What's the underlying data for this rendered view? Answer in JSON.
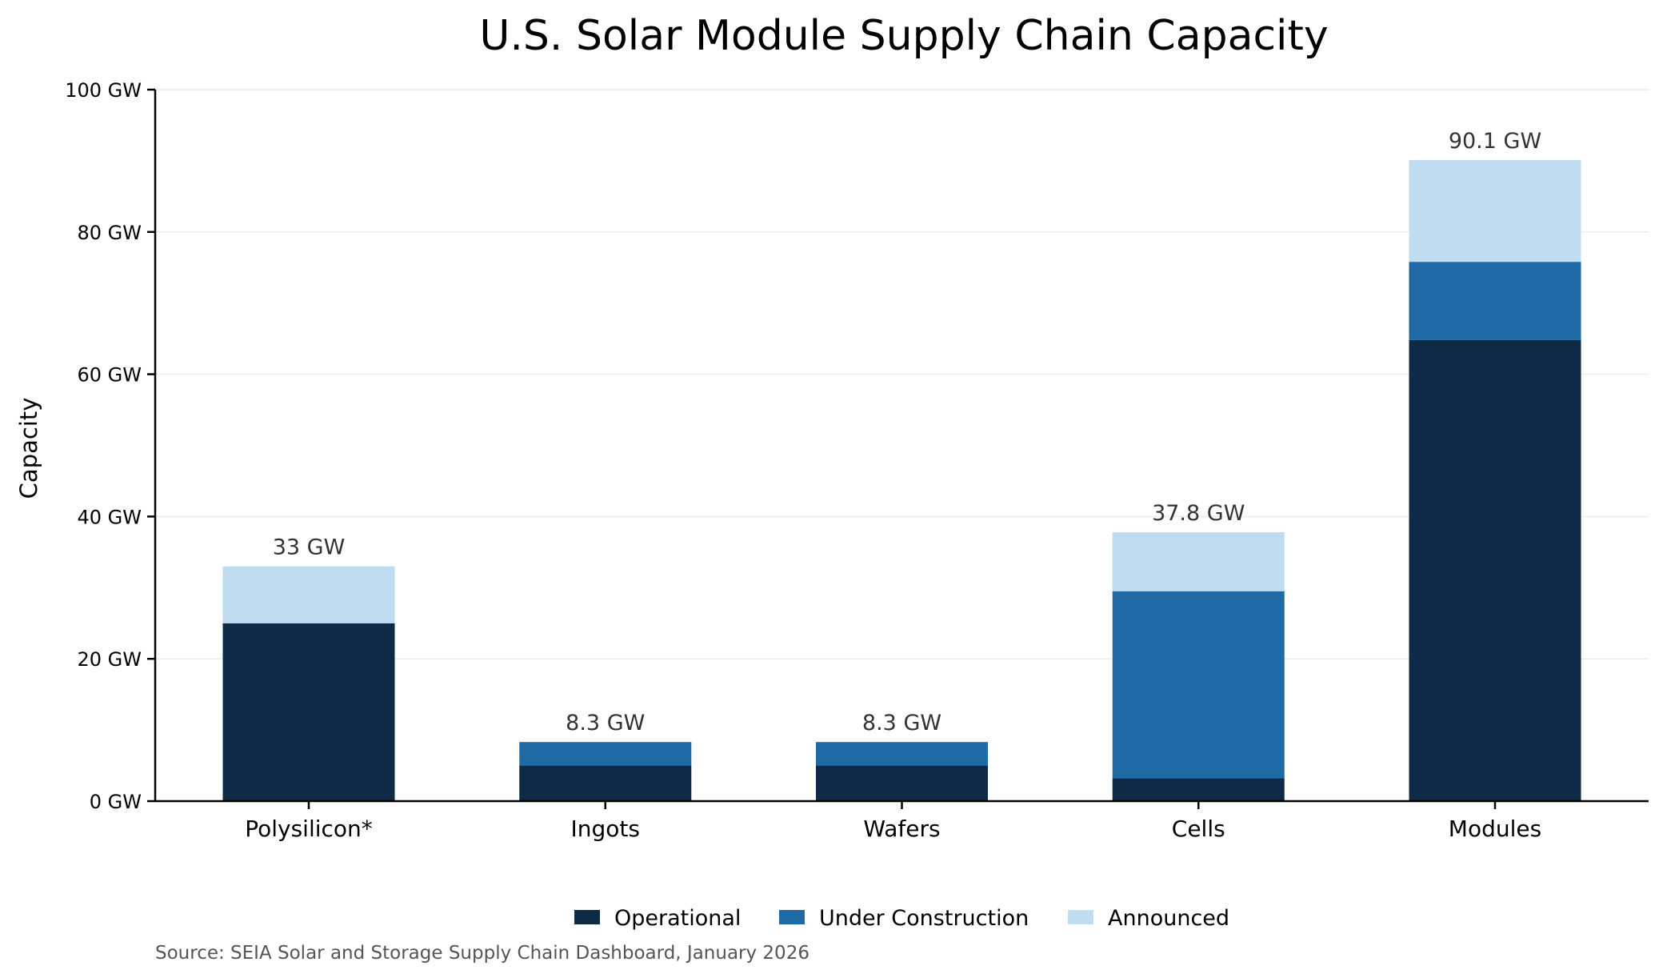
{
  "chart_data": {
    "type": "bar",
    "stacked": true,
    "title": "U.S. Solar Module Supply Chain Capacity",
    "xlabel": "",
    "ylabel": "Capacity",
    "ylim": [
      0,
      100
    ],
    "yticks": [
      0,
      20,
      40,
      60,
      80,
      100
    ],
    "ytick_labels": [
      "0 GW",
      "20 GW",
      "40 GW",
      "60 GW",
      "80 GW",
      "100 GW"
    ],
    "grid": "horizontal",
    "categories": [
      "Polysilicon*",
      "Ingots",
      "Wafers",
      "Cells",
      "Modules"
    ],
    "series": [
      {
        "name": "Operational",
        "color": "#0d2a47",
        "values": [
          25,
          5,
          5,
          3.2,
          64.8
        ]
      },
      {
        "name": "Under Construction",
        "color": "#1f6aa5",
        "values": [
          0,
          3.3,
          3.3,
          26.3,
          11.0
        ]
      },
      {
        "name": "Announced",
        "color": "#bfddf1",
        "values": [
          8,
          0,
          0,
          8.3,
          14.3
        ]
      }
    ],
    "total_labels": [
      "33 GW",
      "8.3 GW",
      "8.3 GW",
      "37.8 GW",
      "90.1 GW"
    ],
    "legend": {
      "position": "bottom-center",
      "entries": [
        "Operational",
        "Under Construction",
        "Announced"
      ]
    },
    "source": "Source: SEIA Solar and Storage Supply Chain Dashboard, January 2026"
  }
}
